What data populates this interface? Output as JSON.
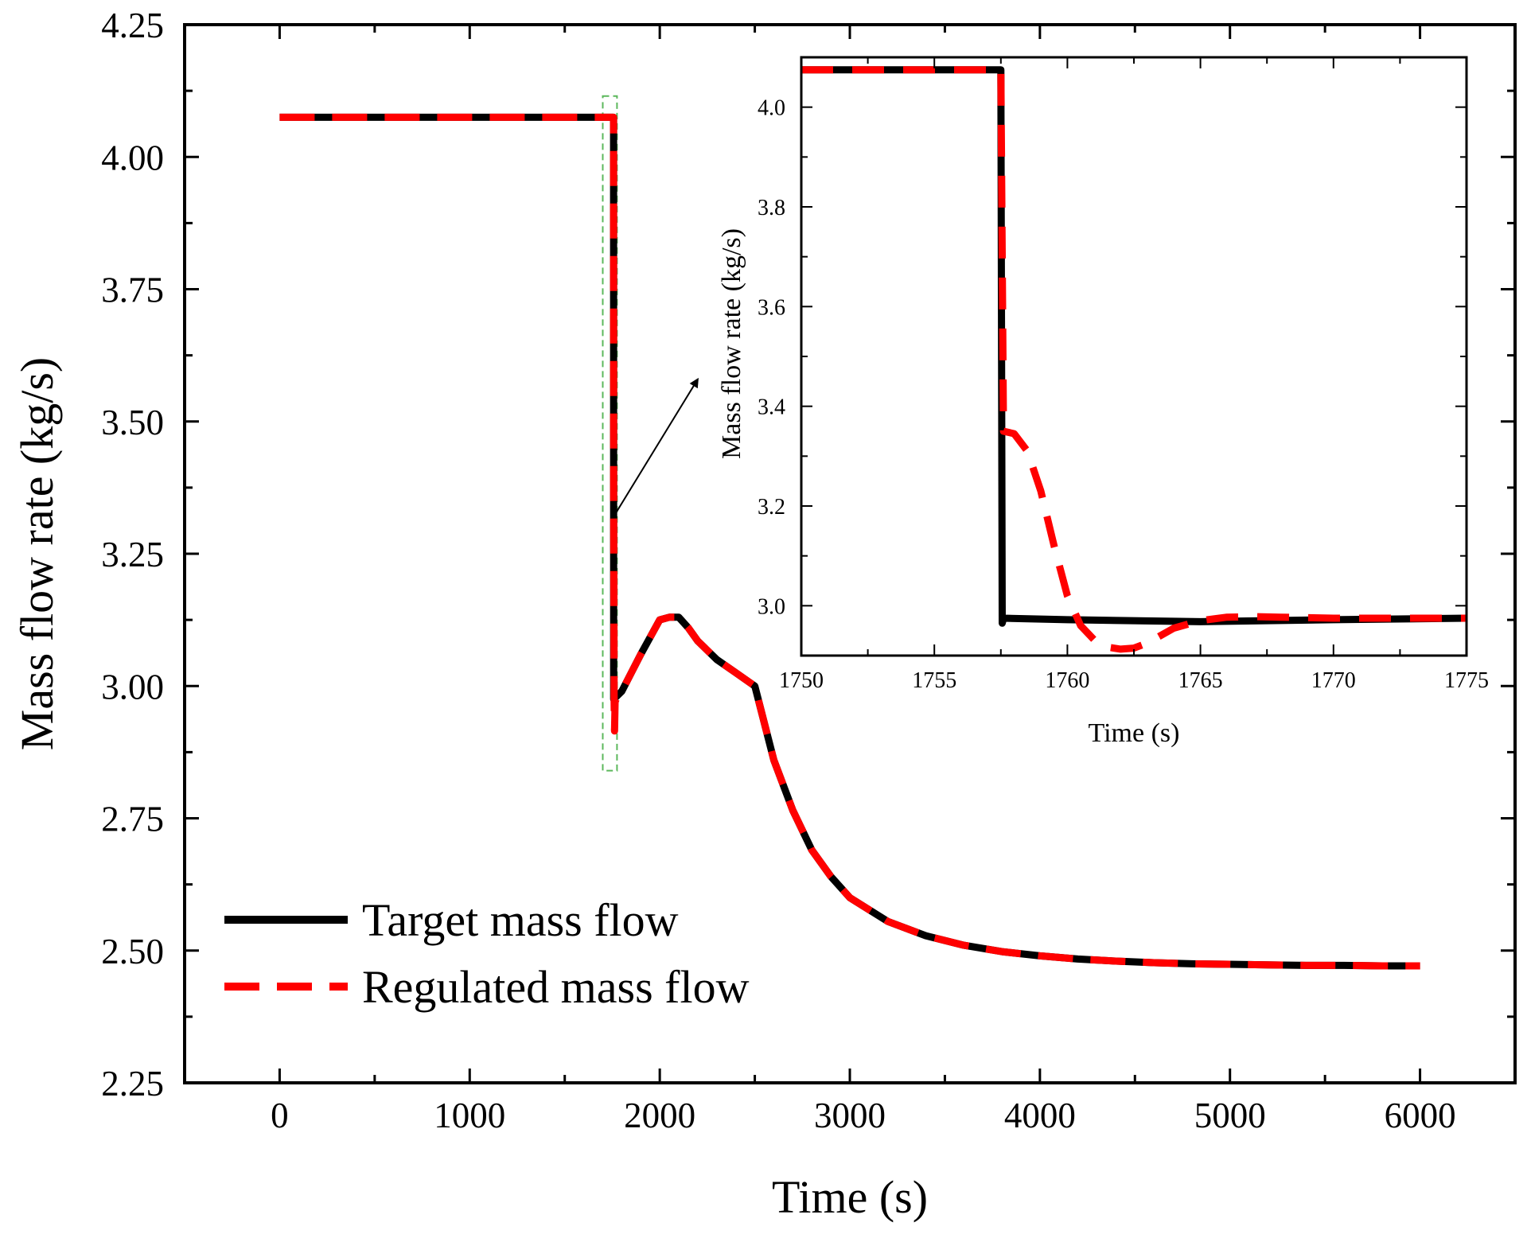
{
  "chart_data": [
    {
      "id": "main",
      "type": "line",
      "title": "",
      "xlabel": "Time (s)",
      "ylabel": "Mass flow rate (kg/s)",
      "xlim": [
        -500,
        6500
      ],
      "ylim": [
        2.25,
        4.25
      ],
      "xticks": [
        0,
        1000,
        2000,
        3000,
        4000,
        5000,
        6000
      ],
      "xtick_labels": [
        "0",
        "1000",
        "2000",
        "3000",
        "4000",
        "5000",
        "6000"
      ],
      "yticks": [
        2.25,
        2.5,
        2.75,
        3.0,
        3.25,
        3.5,
        3.75,
        4.0,
        4.25
      ],
      "ytick_labels": [
        "2.25",
        "2.50",
        "2.75",
        "3.00",
        "3.25",
        "3.50",
        "3.75",
        "4.00",
        "4.25"
      ],
      "legend_position": "bottom-left",
      "grid": false,
      "series": [
        {
          "name": "Target mass flow",
          "color": "#000000",
          "style": "solid",
          "x": [
            0,
            1757,
            1757.5,
            1800,
            1900,
            2000,
            2050,
            2100,
            2150,
            2200,
            2300,
            2400,
            2500,
            2600,
            2700,
            2800,
            2900,
            3000,
            3200,
            3400,
            3600,
            3800,
            4000,
            4200,
            4400,
            4600,
            4800,
            5000,
            5200,
            5400,
            5600,
            5800,
            6000
          ],
          "y": [
            4.075,
            4.075,
            2.975,
            2.99,
            3.06,
            3.125,
            3.13,
            3.13,
            3.11,
            3.085,
            3.05,
            3.025,
            3.0,
            2.86,
            2.765,
            2.69,
            2.64,
            2.6,
            2.555,
            2.528,
            2.51,
            2.498,
            2.49,
            2.484,
            2.48,
            2.477,
            2.475,
            2.474,
            2.473,
            2.472,
            2.472,
            2.471,
            2.471
          ]
        },
        {
          "name": "Regulated mass flow",
          "color": "#ff0000",
          "style": "dashed",
          "x": [
            0,
            1757,
            1757.5,
            1758,
            1760,
            1762,
            1765,
            1770,
            1800,
            1900,
            2000,
            2050,
            2100,
            2150,
            2200,
            2300,
            2400,
            2500,
            2600,
            2700,
            2800,
            2900,
            3000,
            3200,
            3400,
            3600,
            3800,
            4000,
            4200,
            4400,
            4600,
            4800,
            5000,
            5200,
            5400,
            5600,
            5800,
            6000
          ],
          "y": [
            4.075,
            4.075,
            3.35,
            3.3,
            2.97,
            2.915,
            2.97,
            2.975,
            2.99,
            3.06,
            3.125,
            3.13,
            3.13,
            3.11,
            3.085,
            3.05,
            3.025,
            3.0,
            2.86,
            2.765,
            2.69,
            2.64,
            2.6,
            2.555,
            2.528,
            2.51,
            2.498,
            2.49,
            2.484,
            2.48,
            2.477,
            2.475,
            2.474,
            2.473,
            2.472,
            2.472,
            2.471,
            2.471
          ]
        }
      ],
      "annotations": [
        {
          "type": "zoom-box",
          "x_range": [
            1700,
            1775
          ],
          "y_range": [
            2.84,
            4.115
          ],
          "color": "#5cb85c",
          "style": "dashed"
        },
        {
          "type": "arrow",
          "from": [
            1757,
            3.32
          ],
          "to": [
            2200,
            3.58
          ]
        }
      ]
    },
    {
      "id": "inset",
      "type": "line",
      "title": "",
      "xlabel": "Time (s)",
      "ylabel": "Mass flow rate (kg/s)",
      "xlim": [
        1750,
        1775
      ],
      "ylim": [
        2.9,
        4.1
      ],
      "xticks": [
        1750,
        1755,
        1760,
        1765,
        1770,
        1775
      ],
      "xtick_labels": [
        "1750",
        "1755",
        "1760",
        "1765",
        "1770",
        "1775"
      ],
      "yticks": [
        3.0,
        3.2,
        3.4,
        3.6,
        3.8,
        4.0
      ],
      "ytick_labels": [
        "3.0",
        "3.2",
        "3.4",
        "3.6",
        "3.8",
        "4.0"
      ],
      "grid": false,
      "series": [
        {
          "name": "Target mass flow",
          "color": "#000000",
          "style": "solid",
          "x": [
            1750,
            1757.5,
            1757.55,
            1757.6,
            1760,
            1765,
            1770,
            1775
          ],
          "y": [
            4.075,
            4.075,
            2.965,
            2.975,
            2.972,
            2.968,
            2.972,
            2.975
          ]
        },
        {
          "name": "Regulated mass flow",
          "color": "#ff0000",
          "style": "dashed",
          "x": [
            1750,
            1757.5,
            1757.6,
            1758.0,
            1758.5,
            1759.0,
            1759.5,
            1760.0,
            1760.5,
            1761.0,
            1761.5,
            1762.0,
            1762.5,
            1763.0,
            1763.5,
            1764.0,
            1765.0,
            1766.0,
            1767.0,
            1768.0,
            1770.0,
            1772.0,
            1775.0
          ],
          "y": [
            4.075,
            4.075,
            3.35,
            3.345,
            3.31,
            3.23,
            3.12,
            3.02,
            2.96,
            2.932,
            2.917,
            2.913,
            2.915,
            2.925,
            2.94,
            2.955,
            2.97,
            2.977,
            2.978,
            2.977,
            2.975,
            2.975,
            2.975
          ]
        }
      ]
    }
  ]
}
